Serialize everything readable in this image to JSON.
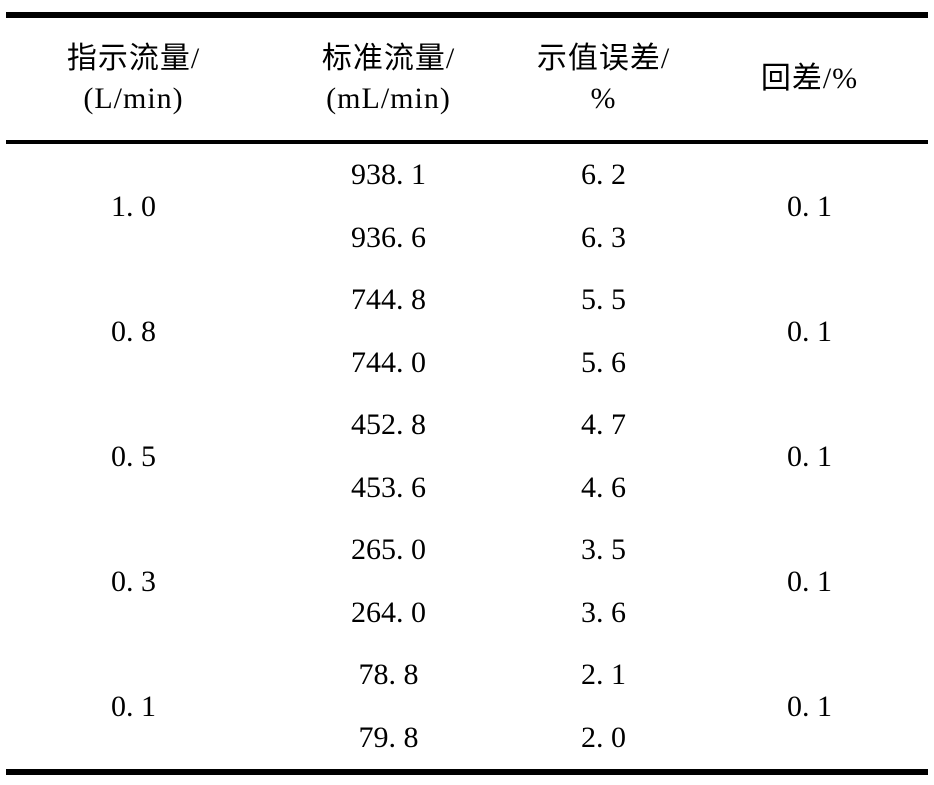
{
  "page": {
    "background": "#ffffff",
    "text_color": "#000000",
    "rule_color": "#000000"
  },
  "chart_data": {
    "type": "table",
    "title": "",
    "columns": [
      {
        "name": "指示流量/(L/min)",
        "line1": "指示流量/",
        "line2": "(L/min)"
      },
      {
        "name": "标准流量/(mL/min)",
        "line1": "标准流量/",
        "line2": "(mL/min)"
      },
      {
        "name": "示值误差/%",
        "line1": "示值误差/",
        "line2": "%"
      },
      {
        "name": "回差/%",
        "line1": "回差/%",
        "line2": ""
      }
    ],
    "groups": [
      {
        "indicated_flow": "1. 0",
        "readings": [
          {
            "standard_flow": "938. 1",
            "error": "6. 2"
          },
          {
            "standard_flow": "936. 6",
            "error": "6. 3"
          }
        ],
        "hysteresis": "0. 1"
      },
      {
        "indicated_flow": "0. 8",
        "readings": [
          {
            "standard_flow": "744. 8",
            "error": "5. 5"
          },
          {
            "standard_flow": "744. 0",
            "error": "5. 6"
          }
        ],
        "hysteresis": "0. 1"
      },
      {
        "indicated_flow": "0. 5",
        "readings": [
          {
            "standard_flow": "452. 8",
            "error": "4. 7"
          },
          {
            "standard_flow": "453. 6",
            "error": "4. 6"
          }
        ],
        "hysteresis": "0. 1"
      },
      {
        "indicated_flow": "0. 3",
        "readings": [
          {
            "standard_flow": "265. 0",
            "error": "3. 5"
          },
          {
            "standard_flow": "264. 0",
            "error": "3. 6"
          }
        ],
        "hysteresis": "0. 1"
      },
      {
        "indicated_flow": "0. 1",
        "readings": [
          {
            "standard_flow": "78. 8",
            "error": "2. 1"
          },
          {
            "standard_flow": "79. 8",
            "error": "2. 0"
          }
        ],
        "hysteresis": "0. 1"
      }
    ],
    "numeric": {
      "indicated_flow_L_per_min": [
        1.0,
        0.8,
        0.5,
        0.3,
        0.1
      ],
      "standard_flow_mL_per_min": [
        [
          938.1,
          936.6
        ],
        [
          744.8,
          744.0
        ],
        [
          452.8,
          453.6
        ],
        [
          265.0,
          264.0
        ],
        [
          78.8,
          79.8
        ]
      ],
      "indication_error_percent": [
        [
          6.2,
          6.3
        ],
        [
          5.5,
          5.6
        ],
        [
          4.7,
          4.6
        ],
        [
          3.5,
          3.6
        ],
        [
          2.1,
          2.0
        ]
      ],
      "hysteresis_percent": [
        0.1,
        0.1,
        0.1,
        0.1,
        0.1
      ]
    }
  }
}
